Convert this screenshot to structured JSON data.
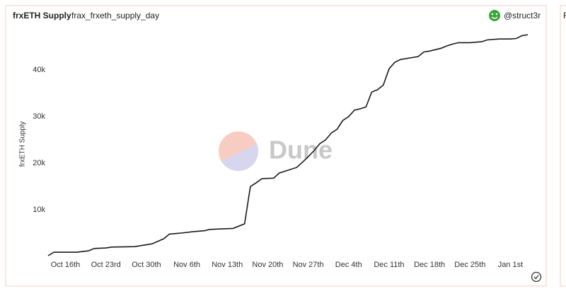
{
  "header": {
    "title": "frxETH Supply",
    "query": "frax_frxeth_supply_day",
    "author": "@struct3r"
  },
  "watermark": "Dune",
  "side_card_title": "F",
  "chart_data": {
    "type": "line",
    "ylabel": "frxETH Supply",
    "color": "#1a1a1a",
    "x": [
      0,
      1,
      5,
      7,
      8,
      10,
      11,
      15,
      16,
      18,
      20,
      21,
      23,
      25,
      27,
      28,
      30,
      32,
      34,
      35,
      36,
      37,
      39,
      40,
      41,
      43,
      44,
      45,
      46,
      47,
      48,
      49,
      50,
      51,
      52,
      53,
      54,
      55,
      56,
      57,
      58,
      59,
      60,
      61,
      63,
      64,
      65,
      66,
      68,
      69,
      70,
      71,
      73,
      75,
      76,
      78,
      80,
      81,
      82,
      83
    ],
    "values": [
      150,
      900,
      900,
      1200,
      1700,
      1800,
      2000,
      2100,
      2300,
      2700,
      3800,
      4800,
      5000,
      5300,
      5500,
      5800,
      5900,
      6000,
      7000,
      15000,
      15800,
      16700,
      16800,
      17900,
      18300,
      19100,
      20200,
      21400,
      22700,
      24200,
      25000,
      26500,
      27300,
      29200,
      30000,
      31400,
      31700,
      32100,
      35300,
      35800,
      36800,
      40300,
      41700,
      42300,
      42700,
      42900,
      43900,
      44100,
      44700,
      45200,
      45600,
      45900,
      45900,
      46100,
      46500,
      46700,
      46700,
      46800,
      47400,
      47600
    ],
    "xlim": [
      0,
      83
    ],
    "xticks": [
      {
        "value": 3,
        "label": "Oct 16th"
      },
      {
        "value": 10,
        "label": "Oct 23rd"
      },
      {
        "value": 17,
        "label": "Oct 30th"
      },
      {
        "value": 24,
        "label": "Nov 6th"
      },
      {
        "value": 31,
        "label": "Nov 13th"
      },
      {
        "value": 38,
        "label": "Nov 20th"
      },
      {
        "value": 45,
        "label": "Nov 27th"
      },
      {
        "value": 52,
        "label": "Dec 4th"
      },
      {
        "value": 59,
        "label": "Dec 11th"
      },
      {
        "value": 66,
        "label": "Dec 18th"
      },
      {
        "value": 73,
        "label": "Dec 25th"
      },
      {
        "value": 80,
        "label": "Jan 1st"
      }
    ],
    "ylim": [
      0,
      49000
    ],
    "yticks": [
      {
        "value": 10000,
        "label": "10k"
      },
      {
        "value": 20000,
        "label": "20k"
      },
      {
        "value": 30000,
        "label": "30k"
      },
      {
        "value": 40000,
        "label": "40k"
      }
    ],
    "grid": false
  }
}
